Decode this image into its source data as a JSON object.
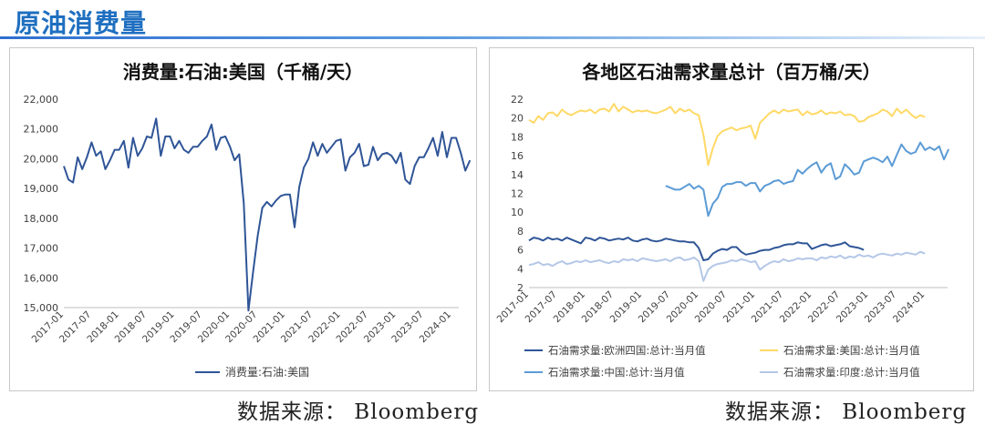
{
  "page_title": "原油消费量",
  "source_text": "数据来源： Bloomberg",
  "chart_data": [
    {
      "type": "line",
      "title": "消费量:石油:美国（千桶/天）",
      "ylim": [
        15000,
        22000
      ],
      "yticks": [
        "15,000",
        "16,000",
        "17,000",
        "18,000",
        "19,000",
        "20,000",
        "21,000",
        "22,000"
      ],
      "xticks": [
        "2017-01",
        "2017-07",
        "2018-01",
        "2018-07",
        "2019-01",
        "2019-07",
        "2020-01",
        "2020-07",
        "2021-01",
        "2021-07",
        "2022-01",
        "2022-07",
        "2023-01",
        "2023-07",
        "2024-01"
      ],
      "x_start": "2017-01",
      "legend_position": "bottom",
      "series": [
        {
          "name": "消费量:石油:美国",
          "color": "#2f5597",
          "values": [
            19750,
            19300,
            19200,
            20050,
            19650,
            20050,
            20550,
            20100,
            20250,
            19650,
            19950,
            20300,
            20300,
            20600,
            19700,
            20700,
            20100,
            20350,
            20750,
            20700,
            21350,
            20100,
            20750,
            20750,
            20350,
            20600,
            20300,
            20200,
            20400,
            20400,
            20600,
            20750,
            21150,
            20300,
            20700,
            20750,
            20400,
            19950,
            20150,
            18500,
            14900,
            16200,
            17400,
            18350,
            18550,
            18400,
            18600,
            18750,
            18800,
            18800,
            17700,
            19050,
            19700,
            20000,
            20550,
            20100,
            20500,
            20200,
            20400,
            20600,
            20650,
            19600,
            20050,
            20200,
            20500,
            19750,
            19800,
            20400,
            19950,
            20150,
            20200,
            20100,
            19850,
            20200,
            19300,
            19150,
            19750,
            20050,
            20050,
            20350,
            20700,
            20100,
            20900,
            20050,
            20700,
            20700,
            20200,
            19600,
            19950
          ]
        }
      ]
    },
    {
      "type": "line",
      "title": "各地区石油需求量总计（百万桶/天）",
      "ylim": [
        2,
        22
      ],
      "yticks": [
        "2",
        "4",
        "6",
        "8",
        "10",
        "12",
        "14",
        "16",
        "18",
        "20",
        "22"
      ],
      "xticks": [
        "2017-01",
        "2017-07",
        "2018-01",
        "2018-07",
        "2019-01",
        "2019-07",
        "2020-01",
        "2020-07",
        "2021-01",
        "2021-07",
        "2022-01",
        "2022-07",
        "2023-01",
        "2023-07",
        "2024-01"
      ],
      "x_start": "2017-01",
      "legend_position": "bottom",
      "series": [
        {
          "name": "石油需求量:欧洲四国:总计:当月值",
          "color": "#2f5597",
          "start_index": 0,
          "values": [
            7.0,
            7.3,
            7.2,
            7.0,
            7.3,
            7.1,
            7.2,
            7.0,
            7.3,
            7.1,
            6.9,
            6.7,
            7.3,
            7.2,
            7.0,
            7.3,
            7.2,
            7.0,
            7.1,
            7.2,
            7.1,
            7.3,
            7.0,
            6.9,
            7.1,
            7.2,
            7.0,
            6.9,
            7.0,
            7.2,
            7.1,
            7.0,
            6.9,
            6.9,
            6.8,
            6.8,
            6.2,
            4.9,
            5.0,
            5.6,
            5.9,
            6.1,
            6.0,
            6.3,
            6.3,
            5.8,
            5.5,
            5.6,
            5.7,
            5.9,
            6.0,
            6.0,
            6.2,
            6.3,
            6.5,
            6.6,
            6.6,
            6.8,
            6.7,
            6.7,
            6.1,
            6.3,
            6.5,
            6.6,
            6.4,
            6.5,
            6.6,
            6.8,
            6.4,
            6.3,
            6.2,
            6.0
          ]
        },
        {
          "name": "石油需求量:美国:总计:当月值",
          "color": "#ffd966",
          "start_index": 0,
          "values": [
            19.8,
            19.5,
            20.2,
            19.8,
            20.5,
            20.6,
            20.2,
            20.9,
            20.5,
            20.3,
            20.6,
            20.8,
            20.7,
            20.9,
            20.5,
            20.9,
            21.0,
            20.7,
            21.5,
            20.7,
            21.2,
            20.9,
            20.6,
            20.8,
            20.7,
            20.8,
            20.6,
            20.5,
            20.7,
            20.9,
            21.2,
            20.5,
            21.0,
            20.7,
            20.9,
            20.5,
            20.3,
            18.2,
            15.0,
            16.8,
            18.1,
            18.6,
            18.8,
            19.0,
            18.7,
            18.9,
            19.0,
            19.2,
            17.8,
            19.5,
            20.0,
            20.5,
            20.8,
            20.5,
            20.9,
            20.7,
            20.8,
            20.9,
            20.3,
            20.7,
            20.4,
            20.5,
            20.8,
            20.4,
            20.6,
            20.5,
            20.7,
            20.3,
            20.4,
            20.2,
            19.6,
            19.7,
            20.1,
            20.3,
            20.5,
            20.9,
            20.7,
            20.2,
            21.0,
            20.5,
            20.9,
            20.4,
            20.0,
            20.3,
            20.1
          ]
        },
        {
          "name": "石油需求量:中国:总计:当月值",
          "color": "#5b9bd5",
          "start_index": 29,
          "values": [
            12.8,
            12.6,
            12.4,
            12.4,
            12.7,
            13.0,
            12.5,
            12.8,
            12.4,
            9.6,
            10.9,
            11.5,
            12.7,
            13.0,
            13.0,
            13.2,
            13.2,
            12.8,
            13.1,
            13.1,
            12.2,
            12.8,
            13.0,
            13.3,
            13.4,
            13.0,
            13.2,
            13.3,
            14.5,
            14.1,
            14.6,
            15.0,
            15.3,
            14.2,
            14.9,
            15.2,
            13.5,
            13.8,
            15.1,
            14.6,
            14.0,
            14.2,
            15.4,
            15.6,
            15.8,
            15.6,
            15.3,
            15.9,
            14.9,
            16.1,
            17.2,
            16.5,
            16.2,
            16.4,
            17.4,
            16.6,
            16.9,
            16.6,
            17.0,
            15.6,
            16.7
          ]
        },
        {
          "name": "石油需求量:印度:总计:当月值",
          "color": "#b4c7e7",
          "start_index": 0,
          "values": [
            4.4,
            4.5,
            4.7,
            4.4,
            4.5,
            4.3,
            4.6,
            4.8,
            4.5,
            4.6,
            4.8,
            4.7,
            4.9,
            4.7,
            4.8,
            4.9,
            4.7,
            4.6,
            4.8,
            4.7,
            5.0,
            4.9,
            5.0,
            4.8,
            5.1,
            5.0,
            4.9,
            4.8,
            4.9,
            5.0,
            4.8,
            5.1,
            5.2,
            4.9,
            5.0,
            5.2,
            4.8,
            2.7,
            3.9,
            4.3,
            4.5,
            4.6,
            4.7,
            4.9,
            4.8,
            5.0,
            4.9,
            4.7,
            4.8,
            3.9,
            4.3,
            4.6,
            4.8,
            4.7,
            5.0,
            4.8,
            4.9,
            5.1,
            5.0,
            5.1,
            5.1,
            4.9,
            5.2,
            5.1,
            5.3,
            5.2,
            5.4,
            5.1,
            5.3,
            5.2,
            5.5,
            5.3,
            5.4,
            5.2,
            5.5,
            5.6,
            5.5,
            5.4,
            5.6,
            5.5,
            5.7,
            5.6,
            5.5,
            5.8,
            5.6
          ]
        }
      ]
    }
  ]
}
